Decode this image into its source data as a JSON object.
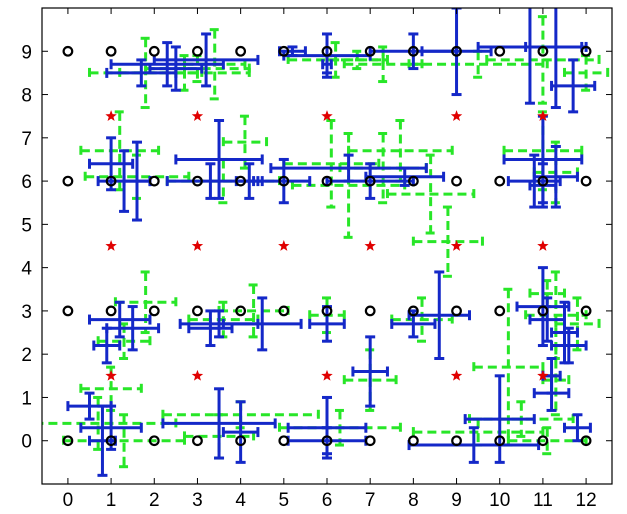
{
  "chart_data": {
    "type": "scatter",
    "title": "",
    "xlabel": "",
    "ylabel": "",
    "xlim": [
      -0.6,
      12.6
    ],
    "ylim": [
      -1.0,
      10.0
    ],
    "x_ticks": [
      0,
      1,
      2,
      3,
      4,
      5,
      6,
      7,
      8,
      9,
      10,
      11,
      12
    ],
    "y_ticks": [
      0,
      1,
      2,
      3,
      4,
      5,
      6,
      7,
      8,
      9
    ],
    "grid": false,
    "legend": "none",
    "colors": {
      "circles": "#000000",
      "stars": "#e00000",
      "blue_error_bars": "#1428c8",
      "green_error_bars": "#28e628"
    },
    "series": [
      {
        "marker": "circle",
        "points": [
          [
            0,
            9
          ],
          [
            1,
            9
          ],
          [
            2,
            9
          ],
          [
            3,
            9
          ],
          [
            4,
            9
          ],
          [
            5,
            9
          ],
          [
            6,
            9
          ],
          [
            7,
            9
          ],
          [
            8,
            9
          ],
          [
            9,
            9
          ],
          [
            10,
            9
          ],
          [
            11,
            9
          ],
          [
            12,
            9
          ],
          [
            0,
            6
          ],
          [
            1,
            6
          ],
          [
            2,
            6
          ],
          [
            3,
            6
          ],
          [
            4,
            6
          ],
          [
            5,
            6
          ],
          [
            6,
            6
          ],
          [
            7,
            6
          ],
          [
            8,
            6
          ],
          [
            9,
            6
          ],
          [
            10,
            6
          ],
          [
            11,
            6
          ],
          [
            12,
            6
          ],
          [
            0,
            3
          ],
          [
            1,
            3
          ],
          [
            2,
            3
          ],
          [
            3,
            3
          ],
          [
            4,
            3
          ],
          [
            5,
            3
          ],
          [
            6,
            3
          ],
          [
            7,
            3
          ],
          [
            8,
            3
          ],
          [
            9,
            3
          ],
          [
            10,
            3
          ],
          [
            11,
            3
          ],
          [
            12,
            3
          ],
          [
            0,
            0
          ],
          [
            1,
            0
          ],
          [
            2,
            0
          ],
          [
            3,
            0
          ],
          [
            4,
            0
          ],
          [
            5,
            0
          ],
          [
            6,
            0
          ],
          [
            7,
            0
          ],
          [
            8,
            0
          ],
          [
            9,
            0
          ],
          [
            10,
            0
          ],
          [
            11,
            0
          ],
          [
            12,
            0
          ]
        ]
      },
      {
        "marker": "star",
        "points": [
          [
            1,
            7.5
          ],
          [
            3,
            7.5
          ],
          [
            6,
            7.5
          ],
          [
            9,
            7.5
          ],
          [
            11,
            7.5
          ],
          [
            1,
            4.5
          ],
          [
            3,
            4.5
          ],
          [
            5,
            4.5
          ],
          [
            7,
            4.5
          ],
          [
            9,
            4.5
          ],
          [
            11,
            4.5
          ],
          [
            1,
            1.5
          ],
          [
            3,
            1.5
          ],
          [
            6,
            1.5
          ],
          [
            9,
            1.5
          ],
          [
            11,
            1.5
          ]
        ]
      },
      {
        "marker": "errorbar-blue",
        "points": [
          [
            1.7,
            8.5,
            0.8,
            0.3
          ],
          [
            2.3,
            8.7,
            1.3,
            0.5
          ],
          [
            3.2,
            8.8,
            1.2,
            0.6
          ],
          [
            2.5,
            8.6,
            0.6,
            0.5
          ],
          [
            5.2,
            9.0,
            0.3,
            0.1
          ],
          [
            6.0,
            8.9,
            1.0,
            0.5
          ],
          [
            6.0,
            8.7,
            0.1,
            0.2
          ],
          [
            8.0,
            9.0,
            1.0,
            0.4
          ],
          [
            9.0,
            9.0,
            0.8,
            1.0
          ],
          [
            10.7,
            9.1,
            1.2,
            1.3
          ],
          [
            11.3,
            9.1,
            0.7,
            1.4
          ],
          [
            11.7,
            8.2,
            0.5,
            0.6
          ],
          [
            1.0,
            6.4,
            0.5,
            0.6
          ],
          [
            1.3,
            6.0,
            0.6,
            0.7
          ],
          [
            1.6,
            6.0,
            0.3,
            0.9
          ],
          [
            3.5,
            6.5,
            1.0,
            0.9
          ],
          [
            3.3,
            6.0,
            1.0,
            0.4
          ],
          [
            4.2,
            6.0,
            0.3,
            0.4
          ],
          [
            5.0,
            6.0,
            0.6,
            0.5
          ],
          [
            6.5,
            6.3,
            1.8,
            0.3
          ],
          [
            7.0,
            6.0,
            1.0,
            0.4
          ],
          [
            7.8,
            6.1,
            0.9,
            0.2
          ],
          [
            11.0,
            6.5,
            0.9,
            1.0
          ],
          [
            10.8,
            6.0,
            0.6,
            0.6
          ],
          [
            11.3,
            6.1,
            0.5,
            0.7
          ],
          [
            11.0,
            5.9,
            0.3,
            0.5
          ],
          [
            1.5,
            2.6,
            0.6,
            0.5
          ],
          [
            1.2,
            2.8,
            0.7,
            0.4
          ],
          [
            0.9,
            2.2,
            0.3,
            0.4
          ],
          [
            3.5,
            2.7,
            0.9,
            0.3
          ],
          [
            4.5,
            2.7,
            0.9,
            0.6
          ],
          [
            3.3,
            2.6,
            0.5,
            0.4
          ],
          [
            6.0,
            2.7,
            0.4,
            0.4
          ],
          [
            8.0,
            2.7,
            0.5,
            0.3
          ],
          [
            8.6,
            2.9,
            0.7,
            1.0
          ],
          [
            11.0,
            3.1,
            0.6,
            0.9
          ],
          [
            11.1,
            2.8,
            0.4,
            0.5
          ],
          [
            11.5,
            2.5,
            0.3,
            0.7
          ],
          [
            11.6,
            2.2,
            0.4,
            0.4
          ],
          [
            11.2,
            1.5,
            0.2,
            0.4
          ],
          [
            0.5,
            0.8,
            0.5,
            0.3
          ],
          [
            1.0,
            0.3,
            0.7,
            0.5
          ],
          [
            0.8,
            0.0,
            0.3,
            0.8
          ],
          [
            3.5,
            0.4,
            1.3,
            0.8
          ],
          [
            4.0,
            0.2,
            0.4,
            0.7
          ],
          [
            6.0,
            0.3,
            0.9,
            0.7
          ],
          [
            6.0,
            0.0,
            0.9,
            0.3
          ],
          [
            7.0,
            1.6,
            0.4,
            0.8
          ],
          [
            9.4,
            -0.1,
            1.5,
            0.4
          ],
          [
            10.0,
            0.5,
            0.8,
            1.0
          ],
          [
            11.8,
            0.3,
            0.3,
            0.3
          ],
          [
            11.2,
            1.1,
            0.4,
            0.4
          ]
        ]
      },
      {
        "marker": "errorbar-green",
        "points": [
          [
            1.8,
            8.5,
            1.3,
            0.8
          ],
          [
            2.7,
            8.5,
            1.5,
            0.4
          ],
          [
            3.4,
            8.7,
            0.7,
            0.8
          ],
          [
            3.0,
            8.6,
            1.2,
            0.3
          ],
          [
            6.2,
            8.8,
            1.1,
            0.4
          ],
          [
            6.7,
            8.8,
            0.7,
            0.2
          ],
          [
            7.3,
            8.7,
            0.9,
            0.4
          ],
          [
            9.5,
            8.7,
            1.6,
            0.3
          ],
          [
            11.0,
            8.8,
            1.3,
            1.0
          ],
          [
            12.0,
            8.5,
            0.5,
            0.4
          ],
          [
            1.2,
            6.7,
            0.9,
            0.9
          ],
          [
            1.6,
            6.1,
            1.2,
            0.5
          ],
          [
            3.6,
            6.0,
            1.3,
            0.5
          ],
          [
            4.1,
            6.9,
            0.5,
            0.6
          ],
          [
            6.1,
            6.4,
            1.1,
            1.0
          ],
          [
            6.5,
            5.9,
            1.3,
            1.2
          ],
          [
            7.3,
            6.3,
            1.0,
            0.8
          ],
          [
            7.7,
            6.7,
            1.2,
            0.7
          ],
          [
            8.4,
            5.7,
            1.0,
            0.9
          ],
          [
            8.8,
            4.6,
            0.8,
            0.8
          ],
          [
            11.0,
            6.7,
            0.9,
            0.9
          ],
          [
            11.3,
            6.2,
            0.5,
            0.7
          ],
          [
            1.8,
            3.2,
            0.7,
            0.7
          ],
          [
            1.3,
            2.3,
            0.6,
            0.4
          ],
          [
            3.6,
            2.8,
            0.8,
            0.4
          ],
          [
            4.3,
            3.0,
            0.8,
            0.6
          ],
          [
            6.0,
            2.9,
            0.4,
            0.4
          ],
          [
            8.2,
            2.8,
            0.7,
            0.5
          ],
          [
            11.3,
            2.9,
            0.7,
            1.0
          ],
          [
            11.8,
            2.7,
            0.5,
            0.6
          ],
          [
            11.1,
            3.4,
            0.4,
            0.3
          ],
          [
            0.7,
            0.4,
            1.8,
            0.6
          ],
          [
            1.3,
            0.0,
            1.4,
            0.6
          ],
          [
            1.0,
            1.2,
            0.7,
            0.5
          ],
          [
            4.0,
            0.6,
            1.8,
            0.3
          ],
          [
            3.5,
            0.1,
            0.8,
            0.5
          ],
          [
            6.3,
            0.3,
            1.4,
            0.4
          ],
          [
            7.0,
            1.4,
            0.6,
            0.7
          ],
          [
            9.5,
            0.2,
            1.5,
            0.3
          ],
          [
            10.2,
            1.7,
            0.8,
            1.8
          ],
          [
            10.5,
            0.5,
            1.2,
            0.4
          ],
          [
            11.1,
            0.0,
            0.9,
            0.3
          ],
          [
            11.3,
            1.4,
            0.3,
            0.8
          ]
        ]
      }
    ]
  }
}
